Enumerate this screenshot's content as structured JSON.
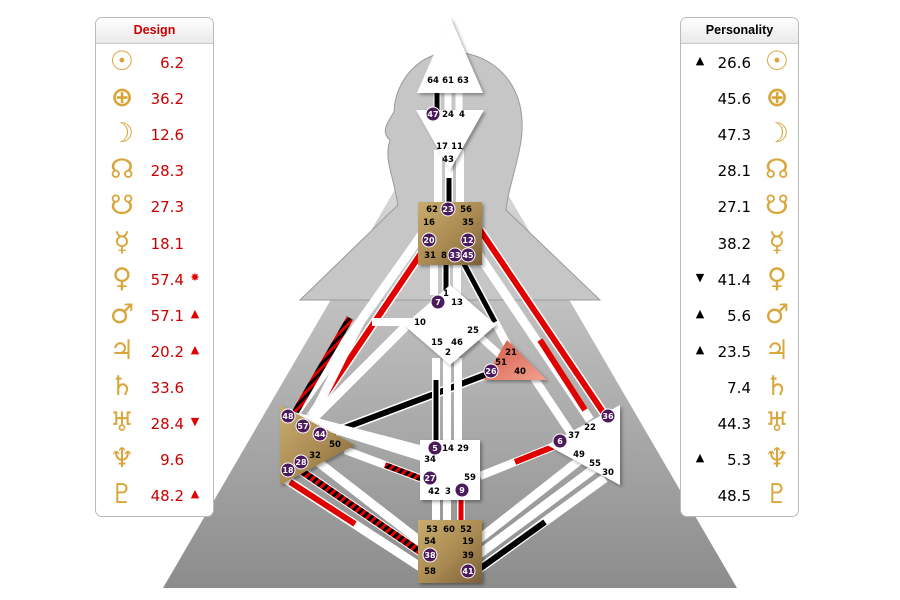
{
  "design": {
    "title": "Design",
    "rows": [
      {
        "planet": "sun-icon",
        "glyph": "☉",
        "value": "6.2",
        "mark": ""
      },
      {
        "planet": "earth-icon",
        "glyph": "⊕",
        "value": "36.2",
        "mark": ""
      },
      {
        "planet": "moon-icon",
        "glyph": "☽",
        "value": "12.6",
        "mark": ""
      },
      {
        "planet": "north-node-icon",
        "glyph": "☊",
        "value": "28.3",
        "mark": ""
      },
      {
        "planet": "south-node-icon",
        "glyph": "☋",
        "value": "27.3",
        "mark": ""
      },
      {
        "planet": "mercury-icon",
        "glyph": "☿",
        "value": "18.1",
        "mark": ""
      },
      {
        "planet": "venus-icon",
        "glyph": "♀",
        "value": "57.4",
        "mark": "✸"
      },
      {
        "planet": "mars-icon",
        "glyph": "♂",
        "value": "57.1",
        "mark": "▲"
      },
      {
        "planet": "jupiter-icon",
        "glyph": "♃",
        "value": "20.2",
        "mark": "▲"
      },
      {
        "planet": "saturn-icon",
        "glyph": "♄",
        "value": "33.6",
        "mark": ""
      },
      {
        "planet": "uranus-icon",
        "glyph": "♅",
        "value": "28.4",
        "mark": "▼"
      },
      {
        "planet": "neptune-icon",
        "glyph": "♆",
        "value": "9.6",
        "mark": ""
      },
      {
        "planet": "pluto-icon",
        "glyph": "♇",
        "value": "48.2",
        "mark": "▲"
      }
    ]
  },
  "personality": {
    "title": "Personality",
    "rows": [
      {
        "planet": "sun-icon",
        "glyph": "☉",
        "value": "26.6",
        "mark": "▲"
      },
      {
        "planet": "earth-icon",
        "glyph": "⊕",
        "value": "45.6",
        "mark": ""
      },
      {
        "planet": "moon-icon",
        "glyph": "☽",
        "value": "47.3",
        "mark": ""
      },
      {
        "planet": "north-node-icon",
        "glyph": "☊",
        "value": "28.1",
        "mark": ""
      },
      {
        "planet": "south-node-icon",
        "glyph": "☋",
        "value": "27.1",
        "mark": ""
      },
      {
        "planet": "mercury-icon",
        "glyph": "☿",
        "value": "38.2",
        "mark": ""
      },
      {
        "planet": "venus-icon",
        "glyph": "♀",
        "value": "41.4",
        "mark": "▼"
      },
      {
        "planet": "mars-icon",
        "glyph": "♂",
        "value": "5.6",
        "mark": "▲"
      },
      {
        "planet": "jupiter-icon",
        "glyph": "♃",
        "value": "23.5",
        "mark": "▲"
      },
      {
        "planet": "saturn-icon",
        "glyph": "♄",
        "value": "7.4",
        "mark": ""
      },
      {
        "planet": "uranus-icon",
        "glyph": "♅",
        "value": "44.3",
        "mark": ""
      },
      {
        "planet": "neptune-icon",
        "glyph": "♆",
        "value": "5.3",
        "mark": "▲"
      },
      {
        "planet": "pluto-icon",
        "glyph": "♇",
        "value": "48.5",
        "mark": ""
      }
    ]
  },
  "bodygraph": {
    "colors": {
      "design": "#e00000",
      "personality": "#000000",
      "channel_open": "#ffffff",
      "activated_gate_fill": "#4b1a5c",
      "center_gold": "#b59a5e",
      "center_spleen_red": "#e07a66",
      "triangle_gray": "#b0b0b0",
      "silhouette_gray": "#c8c8c8"
    },
    "centers": {
      "head": {
        "gates": [
          "64",
          "61",
          "63"
        ]
      },
      "ajna": {
        "gates": [
          "47",
          "24",
          "4"
        ],
        "activated": [
          "47"
        ]
      },
      "throat": {
        "gates": [
          "62",
          "23",
          "56",
          "16",
          "35",
          "20",
          "12",
          "31",
          "8",
          "33",
          "45"
        ],
        "activated": [
          "23",
          "20",
          "12",
          "33",
          "45"
        ]
      },
      "g": {
        "gates": [
          "1",
          "7",
          "13",
          "10",
          "25",
          "15",
          "46",
          "2"
        ],
        "activated": [
          "7"
        ]
      },
      "heart": {
        "gates": [
          "21",
          "51",
          "26",
          "40"
        ],
        "activated": [
          "26"
        ]
      },
      "spleen": {
        "gates": [
          "48",
          "57",
          "44",
          "50",
          "32",
          "28",
          "18"
        ],
        "activated": [
          "48",
          "57",
          "44",
          "28",
          "18"
        ]
      },
      "sacral": {
        "gates": [
          "5",
          "14",
          "29",
          "34",
          "27",
          "42",
          "3",
          "59",
          "9"
        ],
        "activated": [
          "5",
          "27",
          "9"
        ]
      },
      "solar_plexus": {
        "gates": [
          "36",
          "22",
          "37",
          "6",
          "49",
          "55",
          "30"
        ],
        "activated": [
          "36",
          "6"
        ]
      },
      "root": {
        "gates": [
          "53",
          "60",
          "52",
          "54",
          "19",
          "38",
          "39",
          "58",
          "41"
        ],
        "activated": [
          "38",
          "41"
        ]
      },
      "g_spleen_label": {
        "gates": [
          "17",
          "11",
          "43"
        ]
      }
    }
  }
}
